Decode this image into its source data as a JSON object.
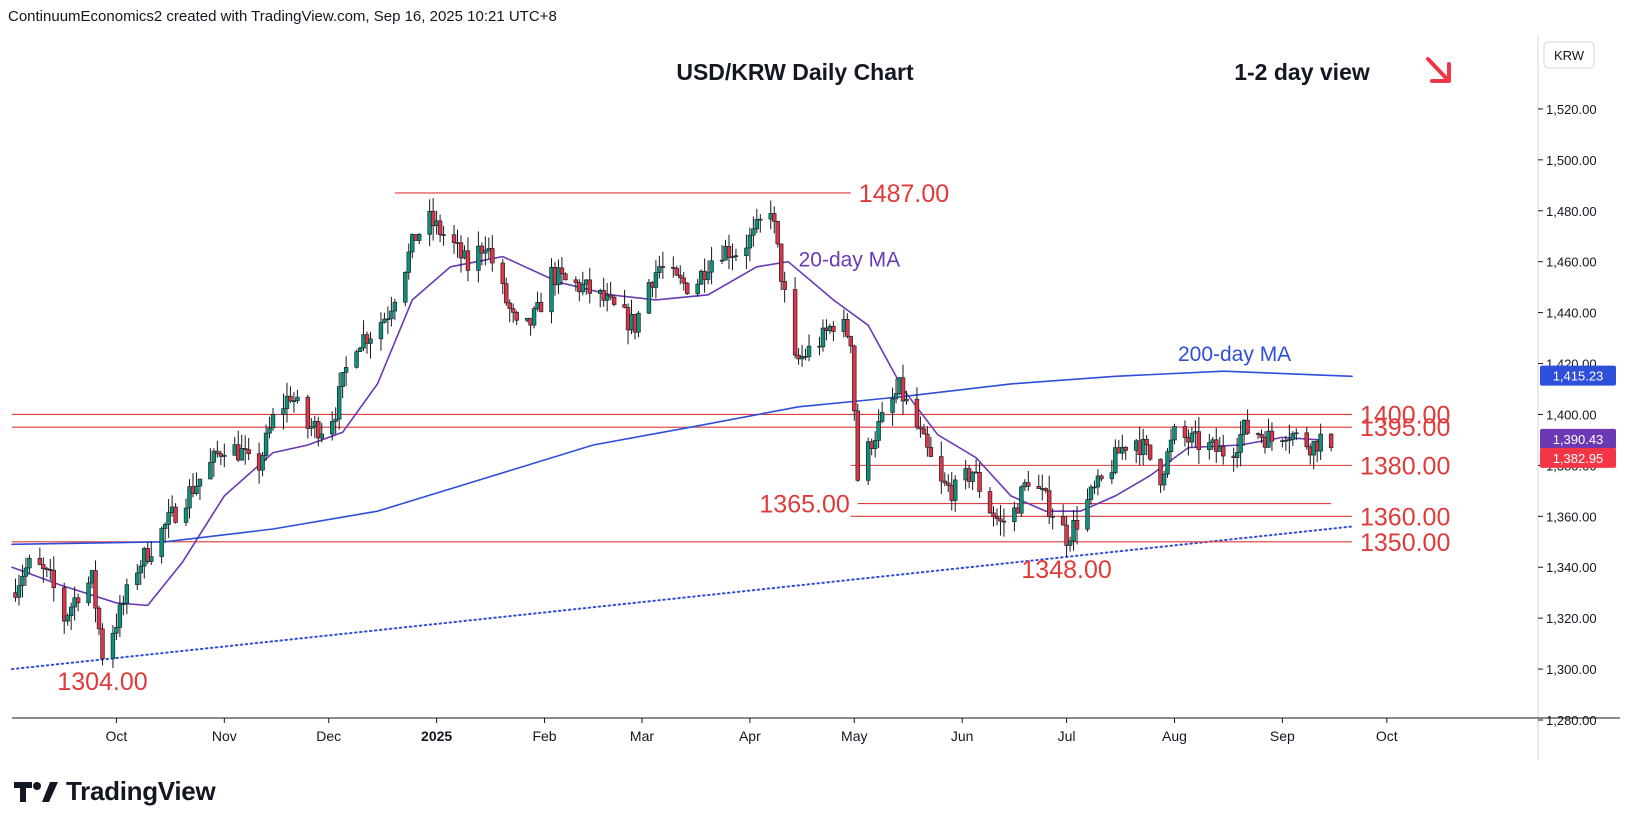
{
  "header": {
    "attribution": "ContinuumEconomics2 created with TradingView.com, Sep 16, 2025 10:21 UTC+8"
  },
  "brand": {
    "name": "TradingView",
    "logo_icon": "tradingview-logo-icon"
  },
  "chart_data": {
    "type": "candlestick",
    "title": "USD/KRW Daily Chart",
    "subtitle": "1-2 day view",
    "direction_icon": "arrow-down-right-icon",
    "currency_label": "KRW",
    "ylim": [
      1280,
      1540
    ],
    "y_ticks": [
      "1,280.00",
      "1,300.00",
      "1,320.00",
      "1,340.00",
      "1,360.00",
      "1,380.00",
      "1,400.00",
      "1,420.00",
      "1,440.00",
      "1,460.00",
      "1,480.00",
      "1,500.00",
      "1,520.00"
    ],
    "x_ticks": [
      {
        "label": "Oct",
        "date": "2024-10-01"
      },
      {
        "label": "Nov",
        "date": "2024-11-01"
      },
      {
        "label": "Dec",
        "date": "2024-12-01"
      },
      {
        "label": "2025",
        "date": "2025-01-01"
      },
      {
        "label": "Feb",
        "date": "2025-02-01"
      },
      {
        "label": "Mar",
        "date": "2025-03-01"
      },
      {
        "label": "Apr",
        "date": "2025-04-01"
      },
      {
        "label": "May",
        "date": "2025-05-01"
      },
      {
        "label": "Jun",
        "date": "2025-06-01"
      },
      {
        "label": "Jul",
        "date": "2025-07-01"
      },
      {
        "label": "Aug",
        "date": "2025-08-01"
      },
      {
        "label": "Sep",
        "date": "2025-09-01"
      },
      {
        "label": "Oct",
        "date": "2025-10-01"
      }
    ],
    "levels": [
      {
        "label": "1487.00",
        "value": 1487,
        "from": "2024-12-20",
        "to": "2025-04-30"
      },
      {
        "label": "1400.00",
        "value": 1400,
        "from": "2024-09-01",
        "to": "2025-09-21"
      },
      {
        "label": "1395.00",
        "value": 1395,
        "from": "2024-09-01",
        "to": "2025-09-21"
      },
      {
        "label": "1380.00",
        "value": 1380,
        "from": "2025-04-30",
        "to": "2025-09-21"
      },
      {
        "label": "1365.00",
        "value": 1365,
        "from": "2025-05-02",
        "to": "2025-09-15"
      },
      {
        "label": "1360.00",
        "value": 1360,
        "from": "2025-04-30",
        "to": "2025-09-21"
      },
      {
        "label": "1350.00",
        "value": 1350,
        "from": "2024-09-01",
        "to": "2025-09-21"
      }
    ],
    "annotations": [
      {
        "label": "1304.00",
        "date": "2024-09-27",
        "value": 1304
      },
      {
        "label": "1348.00",
        "date": "2025-07-01",
        "value": 1348
      }
    ],
    "series": [
      {
        "name": "20-day MA",
        "color": "#6a39b3",
        "points": [
          [
            "2024-09-01",
            1340
          ],
          [
            "2024-09-15",
            1333
          ],
          [
            "2024-10-01",
            1326
          ],
          [
            "2024-10-10",
            1325
          ],
          [
            "2024-10-20",
            1342
          ],
          [
            "2024-11-01",
            1368
          ],
          [
            "2024-11-15",
            1385
          ],
          [
            "2024-11-25",
            1388
          ],
          [
            "2024-12-05",
            1393
          ],
          [
            "2024-12-15",
            1412
          ],
          [
            "2024-12-25",
            1445
          ],
          [
            "2025-01-05",
            1458
          ],
          [
            "2025-01-20",
            1462
          ],
          [
            "2025-02-05",
            1452
          ],
          [
            "2025-02-20",
            1447
          ],
          [
            "2025-03-05",
            1445
          ],
          [
            "2025-03-20",
            1447
          ],
          [
            "2025-04-03",
            1458
          ],
          [
            "2025-04-12",
            1460
          ],
          [
            "2025-04-25",
            1445
          ],
          [
            "2025-05-05",
            1435
          ],
          [
            "2025-05-15",
            1410
          ],
          [
            "2025-05-25",
            1392
          ],
          [
            "2025-06-05",
            1383
          ],
          [
            "2025-06-15",
            1368
          ],
          [
            "2025-06-25",
            1362
          ],
          [
            "2025-07-05",
            1362
          ],
          [
            "2025-07-15",
            1368
          ],
          [
            "2025-07-25",
            1376
          ],
          [
            "2025-08-05",
            1387
          ],
          [
            "2025-08-20",
            1388
          ],
          [
            "2025-09-01",
            1391
          ],
          [
            "2025-09-12",
            1390
          ]
        ]
      },
      {
        "name": "200-day MA",
        "color": "#2e4fd9",
        "points": [
          [
            "2024-09-01",
            1349
          ],
          [
            "2024-10-15",
            1350
          ],
          [
            "2024-11-15",
            1355
          ],
          [
            "2024-12-15",
            1362
          ],
          [
            "2025-01-15",
            1375
          ],
          [
            "2025-02-15",
            1388
          ],
          [
            "2025-03-15",
            1395
          ],
          [
            "2025-04-15",
            1403
          ],
          [
            "2025-05-15",
            1407
          ],
          [
            "2025-06-15",
            1412
          ],
          [
            "2025-07-15",
            1415
          ],
          [
            "2025-08-15",
            1417
          ],
          [
            "2025-09-21",
            1415
          ]
        ]
      },
      {
        "name": "trendline",
        "color": "#2e4fd9",
        "style": "dotted",
        "points": [
          [
            "2024-09-01",
            1300
          ],
          [
            "2025-09-21",
            1356
          ]
        ]
      }
    ],
    "price_tags": [
      {
        "label": "1,415.23",
        "value": 1415.23,
        "color": "#2e4fd9"
      },
      {
        "label": "1,390.43",
        "value": 1390.43,
        "color": "#6a39b3"
      },
      {
        "label": "1,382.95",
        "value": 1382.95,
        "color": "#f23645"
      }
    ],
    "candle_path": [
      [
        "2024-09-01",
        1330
      ],
      [
        "2024-09-04",
        1338
      ],
      [
        "2024-09-07",
        1342
      ],
      [
        "2024-09-12",
        1335
      ],
      [
        "2024-09-16",
        1320
      ],
      [
        "2024-09-20",
        1330
      ],
      [
        "2024-09-24",
        1335
      ],
      [
        "2024-09-27",
        1306
      ],
      [
        "2024-10-02",
        1322
      ],
      [
        "2024-10-07",
        1340
      ],
      [
        "2024-10-12",
        1350
      ],
      [
        "2024-10-20",
        1366
      ],
      [
        "2024-10-28",
        1380
      ],
      [
        "2024-11-01",
        1388
      ],
      [
        "2024-11-06",
        1385
      ],
      [
        "2024-11-10",
        1376
      ],
      [
        "2024-11-15",
        1398
      ],
      [
        "2024-11-20",
        1408
      ],
      [
        "2024-11-25",
        1395
      ],
      [
        "2024-11-30",
        1395
      ],
      [
        "2024-12-03",
        1402
      ],
      [
        "2024-12-08",
        1428
      ],
      [
        "2024-12-13",
        1432
      ],
      [
        "2024-12-18",
        1440
      ],
      [
        "2024-12-22",
        1455
      ],
      [
        "2024-12-26",
        1470
      ],
      [
        "2024-12-30",
        1476
      ],
      [
        "2025-01-05",
        1468
      ],
      [
        "2025-01-10",
        1458
      ],
      [
        "2025-01-15",
        1468
      ],
      [
        "2025-01-20",
        1448
      ],
      [
        "2025-01-25",
        1430
      ],
      [
        "2025-01-30",
        1440
      ],
      [
        "2025-02-03",
        1455
      ],
      [
        "2025-02-07",
        1452
      ],
      [
        "2025-02-12",
        1450
      ],
      [
        "2025-02-17",
        1446
      ],
      [
        "2025-02-22",
        1440
      ],
      [
        "2025-02-27",
        1435
      ],
      [
        "2025-03-03",
        1452
      ],
      [
        "2025-03-06",
        1458
      ],
      [
        "2025-03-11",
        1452
      ],
      [
        "2025-03-16",
        1450
      ],
      [
        "2025-03-20",
        1460
      ],
      [
        "2025-03-24",
        1465
      ],
      [
        "2025-03-28",
        1464
      ],
      [
        "2025-04-02",
        1470
      ],
      [
        "2025-04-07",
        1482
      ],
      [
        "2025-04-10",
        1455
      ],
      [
        "2025-04-14",
        1420
      ],
      [
        "2025-04-18",
        1425
      ],
      [
        "2025-04-22",
        1430
      ],
      [
        "2025-04-26",
        1438
      ],
      [
        "2025-04-30",
        1430
      ],
      [
        "2025-05-02",
        1375
      ],
      [
        "2025-05-06",
        1390
      ],
      [
        "2025-05-10",
        1400
      ],
      [
        "2025-05-14",
        1410
      ],
      [
        "2025-05-18",
        1398
      ],
      [
        "2025-05-22",
        1385
      ],
      [
        "2025-05-26",
        1372
      ],
      [
        "2025-05-30",
        1370
      ],
      [
        "2025-06-04",
        1378
      ],
      [
        "2025-06-08",
        1365
      ],
      [
        "2025-06-12",
        1357
      ],
      [
        "2025-06-16",
        1362
      ],
      [
        "2025-06-20",
        1375
      ],
      [
        "2025-06-24",
        1368
      ],
      [
        "2025-06-28",
        1360
      ],
      [
        "2025-07-01",
        1352
      ],
      [
        "2025-07-04",
        1358
      ],
      [
        "2025-07-08",
        1368
      ],
      [
        "2025-07-12",
        1375
      ],
      [
        "2025-07-16",
        1385
      ],
      [
        "2025-07-20",
        1392
      ],
      [
        "2025-07-24",
        1385
      ],
      [
        "2025-07-28",
        1376
      ],
      [
        "2025-08-01",
        1392
      ],
      [
        "2025-08-05",
        1390
      ],
      [
        "2025-08-09",
        1388
      ],
      [
        "2025-08-13",
        1386
      ],
      [
        "2025-08-17",
        1385
      ],
      [
        "2025-08-21",
        1394
      ],
      [
        "2025-08-25",
        1393
      ],
      [
        "2025-08-29",
        1390
      ],
      [
        "2025-09-02",
        1394
      ],
      [
        "2025-09-06",
        1390
      ],
      [
        "2025-09-10",
        1388
      ],
      [
        "2025-09-13",
        1392
      ],
      [
        "2025-09-15",
        1383
      ]
    ],
    "up_color": "#0f8f78",
    "down_color": "#d93646"
  }
}
